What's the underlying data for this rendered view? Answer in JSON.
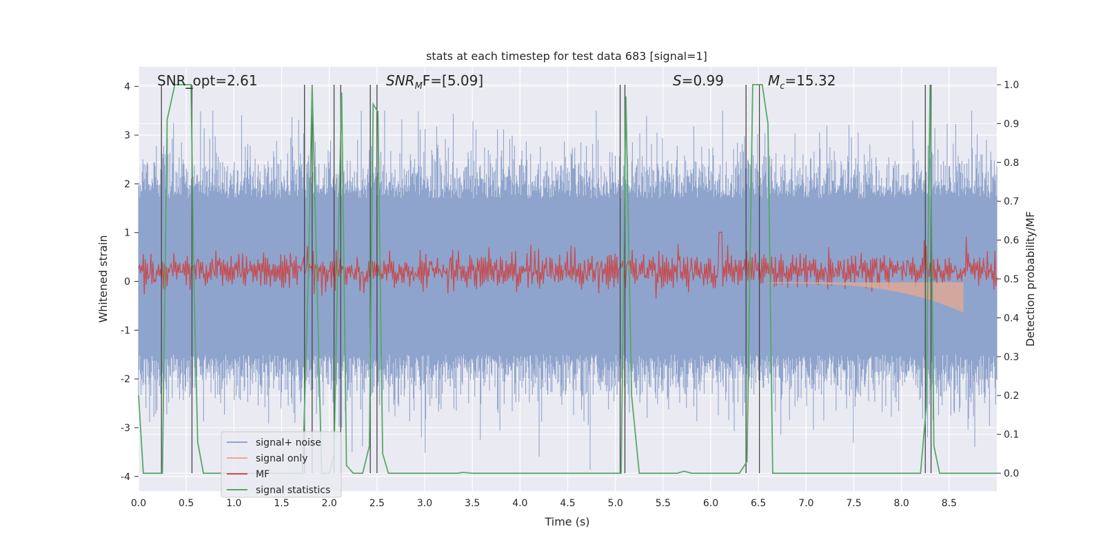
{
  "chart_data": {
    "type": "line",
    "title": "stats at each timestep for test data 683 [signal=1]",
    "xlabel": "Time (s)",
    "ylabel_left": "Whitened strain",
    "ylabel_right": "Detection probability/MF",
    "xlim": [
      0,
      9.0
    ],
    "ylim_left": [
      -4.3,
      4.4
    ],
    "ylim_right": [
      -0.046,
      1.046
    ],
    "xticks": [
      "0.0",
      "0.5",
      "1.0",
      "1.5",
      "2.0",
      "2.5",
      "3.0",
      "3.5",
      "4.0",
      "4.5",
      "5.0",
      "5.5",
      "6.0",
      "6.5",
      "7.0",
      "7.5",
      "8.0",
      "8.5"
    ],
    "xtick_values": [
      0,
      0.5,
      1,
      1.5,
      2,
      2.5,
      3,
      3.5,
      4,
      4.5,
      5,
      5.5,
      6,
      6.5,
      7,
      7.5,
      8,
      8.5
    ],
    "yticks_left": [
      "-4",
      "-3",
      "-2",
      "-1",
      "0",
      "1",
      "2",
      "3",
      "4"
    ],
    "ytick_values_left": [
      -4,
      -3,
      -2,
      -1,
      0,
      1,
      2,
      3,
      4
    ],
    "yticks_right": [
      "0.0",
      "0.1",
      "0.2",
      "0.3",
      "0.4",
      "0.5",
      "0.6",
      "0.7",
      "0.8",
      "0.9",
      "1.0"
    ],
    "ytick_values_right": [
      0,
      0.1,
      0.2,
      0.3,
      0.4,
      0.5,
      0.6,
      0.7,
      0.8,
      0.9,
      1.0
    ],
    "annotations": {
      "snr_opt": "SNR_opt=2.61",
      "snr_mf_main": "SNR",
      "snr_mf_sub": "M",
      "snr_mf_rest": "F=[5.09]",
      "s_label": "S",
      "s_value": "=0.99",
      "mc_main": "M",
      "mc_sub": "c",
      "mc_value": "=15.32"
    },
    "legend": {
      "position": "lower-left",
      "entries": [
        {
          "name": "signal+ noise",
          "color": "#8fa4cc"
        },
        {
          "name": "signal only",
          "color": "#e8a98f"
        },
        {
          "name": "MF",
          "color": "#c44e52"
        },
        {
          "name": "signal statistics",
          "color": "#55a868"
        }
      ]
    },
    "series": [
      {
        "name": "signal statistics",
        "axis": "right",
        "x": [
          0.0,
          0.05,
          0.1,
          0.25,
          0.3,
          0.38,
          0.45,
          0.55,
          0.58,
          0.62,
          0.68,
          0.75,
          1.6,
          1.72,
          1.78,
          1.82,
          1.87,
          1.92,
          2.0,
          2.05,
          2.09,
          2.13,
          2.18,
          2.25,
          2.35,
          2.42,
          2.46,
          2.51,
          2.56,
          2.62,
          3.0,
          3.35,
          3.4,
          3.5,
          4.0,
          4.5,
          5.0,
          5.06,
          5.11,
          5.17,
          5.25,
          5.5,
          5.65,
          5.72,
          5.8,
          6.3,
          6.38,
          6.44,
          6.49,
          6.54,
          6.6,
          6.65,
          7.0,
          7.5,
          8.0,
          8.2,
          8.26,
          8.3,
          8.34,
          8.4,
          8.5,
          9.0
        ],
        "y": [
          0.2,
          0.0,
          0.0,
          0.0,
          0.91,
          1.0,
          1.0,
          1.0,
          0.5,
          0.08,
          0.0,
          0.0,
          0.0,
          0.0,
          0.5,
          1.0,
          0.5,
          0.0,
          0.0,
          0.05,
          0.55,
          0.98,
          0.02,
          0.0,
          0.0,
          0.07,
          0.95,
          0.93,
          0.05,
          0.0,
          0.0,
          0.0,
          0.002,
          0.0,
          0.0,
          0.0,
          0.0,
          0.0,
          0.97,
          0.2,
          0.0,
          0.0,
          0.0,
          0.005,
          0.0,
          0.0,
          0.03,
          1.0,
          1.0,
          1.0,
          0.9,
          0.0,
          0.0,
          0.0,
          0.0,
          0.0,
          0.17,
          1.0,
          0.07,
          0.0,
          0.0,
          0.0
        ]
      }
    ],
    "signal_noise_range": [
      -4.1,
      3.5
    ],
    "mf_band": [
      0.0,
      1.0
    ],
    "signal_only_tail": [
      6.6,
      8.65
    ],
    "vlines": [
      0.24,
      0.56,
      1.74,
      1.82,
      2.05,
      2.12,
      2.43,
      2.5,
      5.05,
      5.1,
      6.37,
      6.51,
      8.25,
      8.31
    ]
  }
}
